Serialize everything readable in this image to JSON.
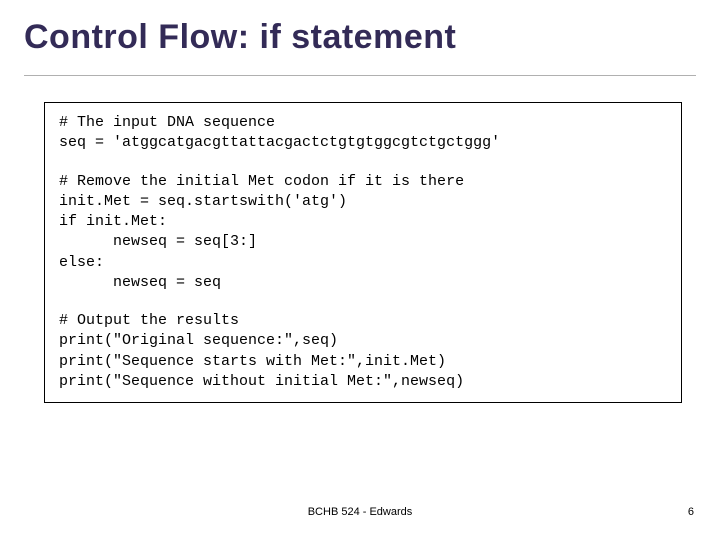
{
  "title": "Control Flow: if statement",
  "title_color": "#332b57",
  "title_fontsize": 34,
  "code_font": "Courier New",
  "code_fontsize": 15,
  "box_border_color": "#000000",
  "background_color": "#ffffff",
  "code": {
    "block1": {
      "l1": "# The input DNA sequence",
      "l2": "seq = 'atggcatgacgttattacgactctgtgtggcgtctgctggg'"
    },
    "block2": {
      "l1": "# Remove the initial Met codon if it is there",
      "l2": "init.Met = seq.startswith('atg')",
      "l3": "if init.Met:",
      "l4": "newseq = seq[3:]",
      "l5": "else:",
      "l6": "newseq = seq"
    },
    "block3": {
      "l1": "# Output the results",
      "l2": "print(\"Original sequence:\",seq)",
      "l3": "print(\"Sequence starts with Met:\",init.Met)",
      "l4": "print(\"Sequence without initial Met:\",newseq)"
    }
  },
  "footer": "BCHB 524 - Edwards",
  "pagenum": "6"
}
